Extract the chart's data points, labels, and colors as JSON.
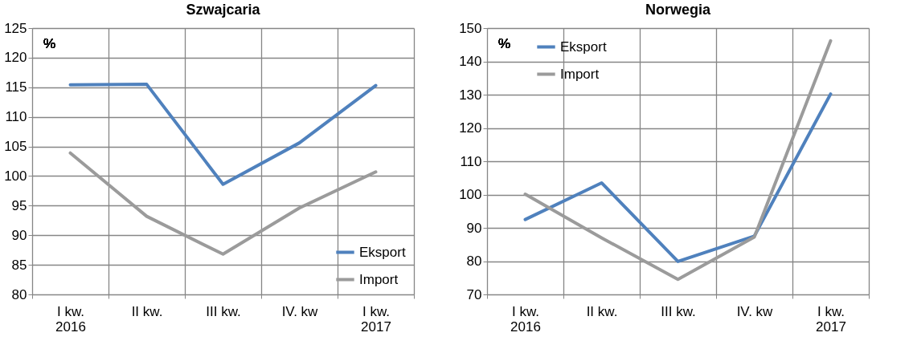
{
  "chart_data": [
    {
      "type": "line",
      "title": "Szwajcaria",
      "annotations": [
        "%"
      ],
      "categories": [
        "I kw.\n2016",
        "II kw.",
        "III kw.",
        "IV. kw",
        "I kw.\n2017"
      ],
      "series": [
        {
          "name": "Eksport",
          "color": "#4f81bd",
          "values": [
            115.4,
            115.5,
            98.6,
            105.6,
            115.3
          ]
        },
        {
          "name": "Import",
          "color": "#9b9b9b",
          "values": [
            103.9,
            93.2,
            86.8,
            94.6,
            100.7
          ]
        }
      ],
      "ylim": [
        80,
        125
      ],
      "yticks": [
        80,
        85,
        90,
        95,
        100,
        105,
        110,
        115,
        120,
        125
      ],
      "grid": true,
      "legend": "bottom right",
      "marker": "none",
      "line_style": "solid"
    },
    {
      "type": "line",
      "title": "Norwegia",
      "annotations": [
        "%"
      ],
      "categories": [
        "I kw.\n2016",
        "II kw.",
        "III kw.",
        "IV. kw",
        "I kw.\n2017"
      ],
      "series": [
        {
          "name": "Eksport",
          "color": "#4f81bd",
          "values": [
            92.5,
            103.5,
            79.9,
            87.5,
            130.2
          ]
        },
        {
          "name": "Import",
          "color": "#9b9b9b",
          "values": [
            100.1,
            87.0,
            74.5,
            87.2,
            146.2
          ]
        }
      ],
      "ylim": [
        70,
        150
      ],
      "yticks": [
        70,
        80,
        90,
        100,
        110,
        120,
        130,
        140,
        150
      ],
      "grid": true,
      "legend": "top left",
      "marker": "none",
      "line_style": "solid"
    }
  ]
}
